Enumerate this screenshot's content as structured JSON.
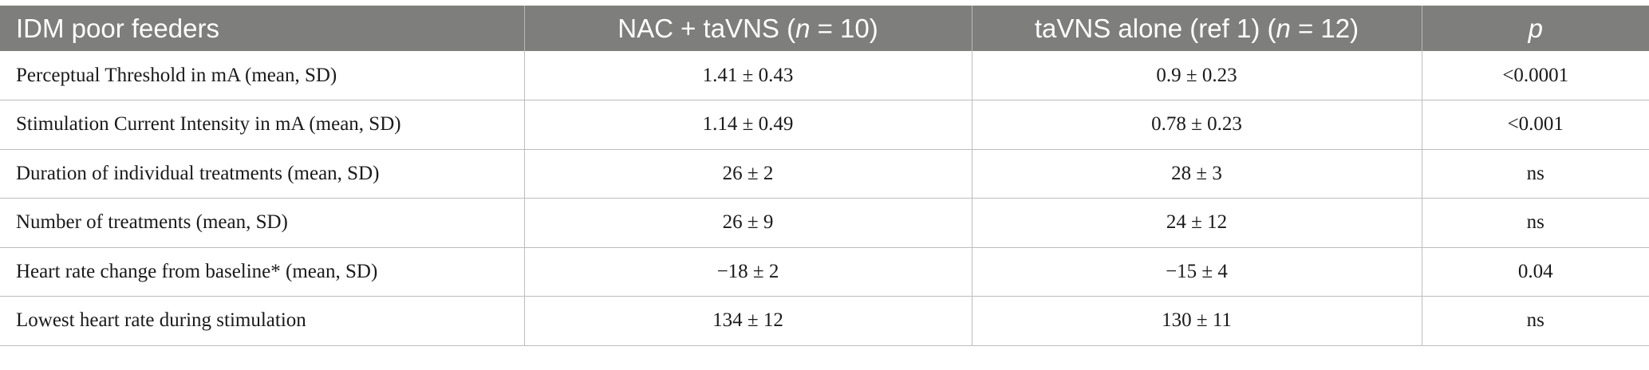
{
  "header": {
    "col1": "IDM poor feeders",
    "col2_prefix": "NAC + taVNS (",
    "col2_n": "n",
    "col2_suffix": " = 10)",
    "col3_prefix": "taVNS alone (ref 1) (",
    "col3_n": "n",
    "col3_suffix": " = 12)",
    "col4": "p"
  },
  "rows": [
    {
      "label": "Perceptual Threshold in mA (mean, SD)",
      "nac": "1.41 ± 0.43",
      "alone": "0.9 ± 0.23",
      "p": "<0.0001"
    },
    {
      "label": "Stimulation Current Intensity in mA (mean, SD)",
      "nac": "1.14 ± 0.49",
      "alone": "0.78 ± 0.23",
      "p": "<0.001"
    },
    {
      "label": "Duration of individual treatments (mean, SD)",
      "nac": "26 ± 2",
      "alone": "28 ± 3",
      "p": "ns"
    },
    {
      "label": "Number of treatments (mean, SD)",
      "nac": "26 ± 9",
      "alone": "24 ± 12",
      "p": "ns"
    },
    {
      "label": "Heart rate change from baseline* (mean, SD)",
      "nac": "−18 ± 2",
      "alone": "−15 ± 4",
      "p": "0.04"
    },
    {
      "label": "Lowest heart rate during stimulation",
      "nac": "134 ± 12",
      "alone": "130 ± 11",
      "p": "ns"
    }
  ]
}
